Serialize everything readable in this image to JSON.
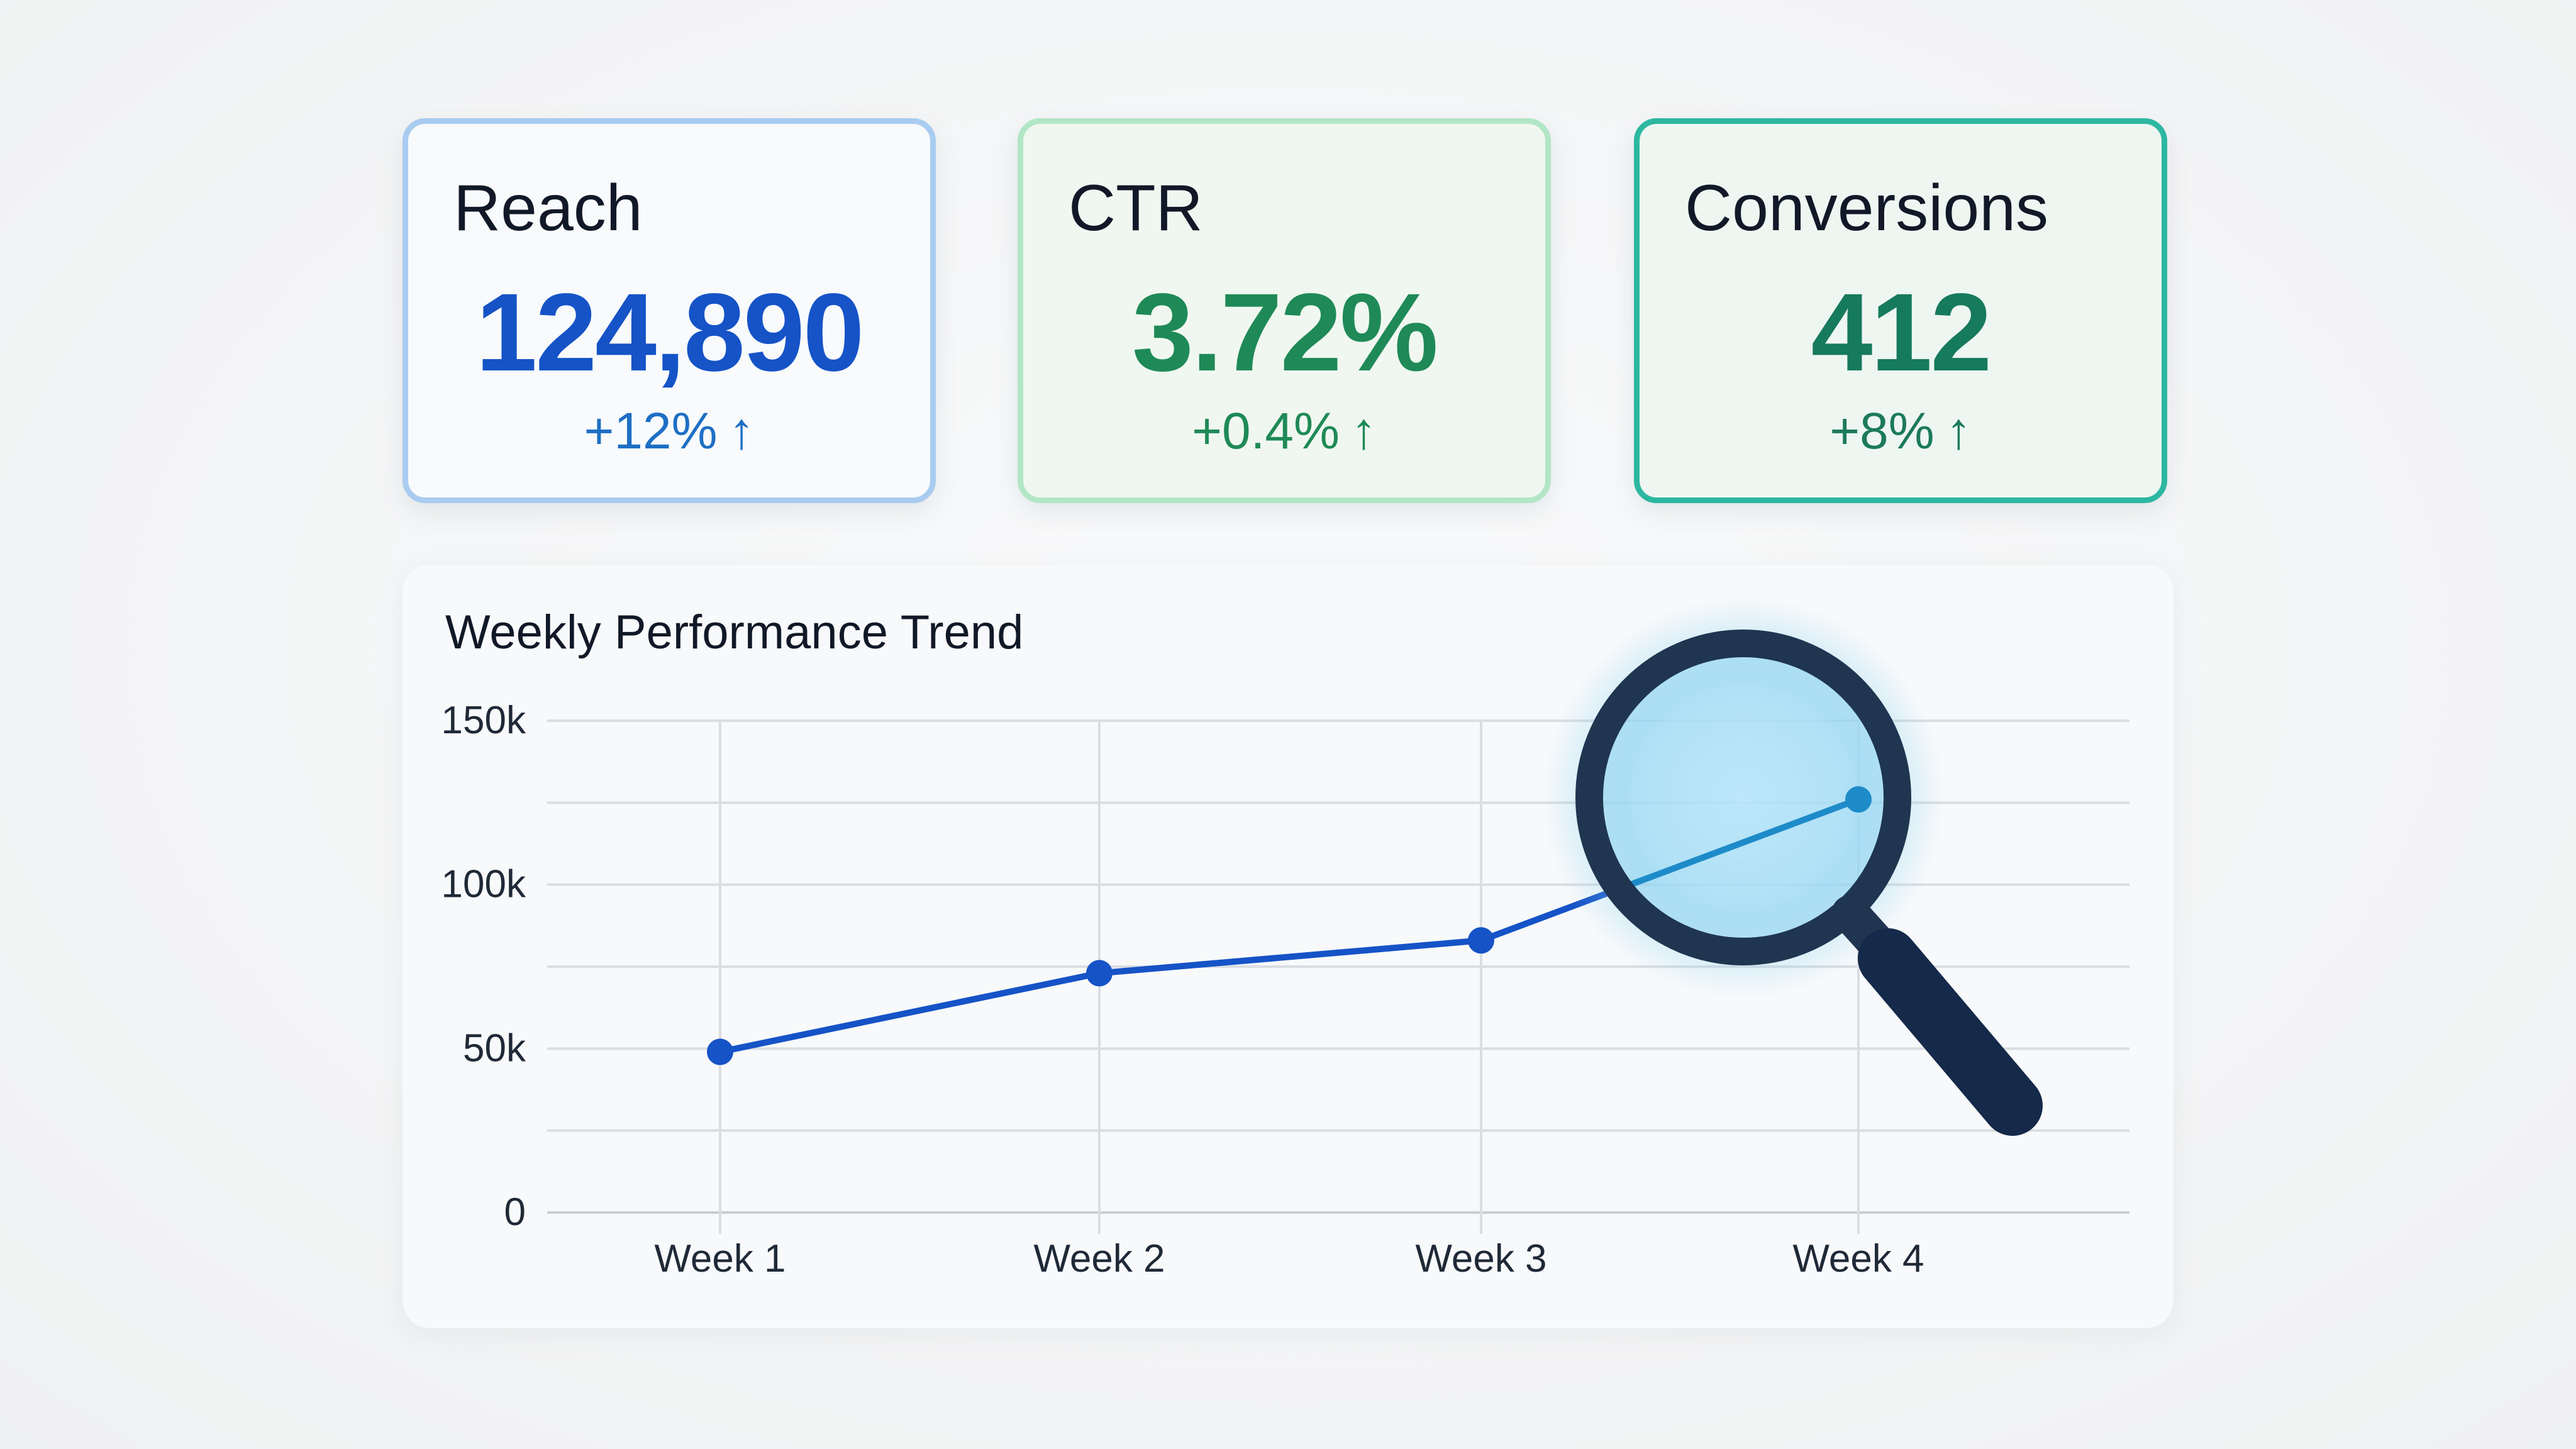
{
  "kpis": [
    {
      "title": "Reach",
      "value": "124,890",
      "change": "+12%",
      "trend_icon": "arrow-up-icon"
    },
    {
      "title": "CTR",
      "value": "3.72%",
      "change": "+0.4%",
      "trend_icon": "arrow-up-icon"
    },
    {
      "title": "Conversions",
      "value": "412",
      "change": "+8%",
      "trend_icon": "arrow-up-icon"
    }
  ],
  "colors": {
    "reach_accent": "#1553c7",
    "ctr_accent": "#1f8a57",
    "conversions_accent": "#167a5c",
    "line": "#1553c7",
    "magnifier_lens": "#bde6f7",
    "magnifier_frame": "#1f3550"
  },
  "chart": {
    "title": "Weekly Performance Trend",
    "overlay_icon": "magnifying-glass-icon"
  },
  "chart_data": {
    "type": "line",
    "title": "Weekly Performance Trend",
    "categories": [
      "Week 1",
      "Week 2",
      "Week 3",
      "Week 4"
    ],
    "series": [
      {
        "values": [
          49000,
          73000,
          83000,
          126000
        ]
      }
    ],
    "xlabel": "",
    "ylabel": "",
    "ylim": [
      0,
      150000
    ],
    "y_ticks": [
      0,
      50000,
      100000,
      150000
    ],
    "y_tick_labels": [
      "0",
      "50k",
      "100k",
      "150k"
    ],
    "grid": true,
    "legend": "none"
  }
}
